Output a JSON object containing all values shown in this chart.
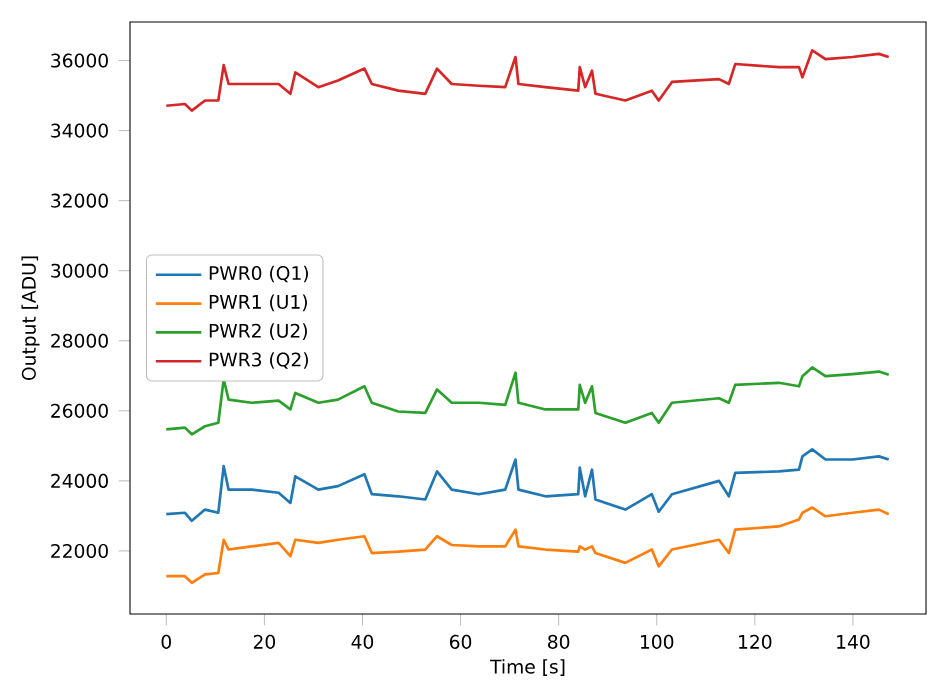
{
  "chart_data": {
    "type": "line",
    "xlabel": "Time [s]",
    "ylabel": "Output [ADU]",
    "x": [
      0,
      3.8,
      5.2,
      7.9,
      10.6,
      11.7,
      12.7,
      17.4,
      22.9,
      25.3,
      26.3,
      31,
      35,
      40.4,
      41.9,
      47.3,
      52.8,
      55.2,
      58.2,
      63.7,
      69.1,
      71.2,
      71.8,
      77.3,
      84,
      84.3,
      85.4,
      86.8,
      87.5,
      93.6,
      99,
      100.4,
      103.1,
      112.7,
      114.7,
      116,
      124.9,
      129,
      129.7,
      131.7,
      134.4,
      139.9,
      145.3,
      147.3
    ],
    "series": [
      {
        "name": "PWR0 (Q1)",
        "color": "#1f77b4",
        "values": [
          23050,
          23090,
          22860,
          23180,
          23090,
          24420,
          23750,
          23750,
          23660,
          23370,
          24130,
          23750,
          23850,
          24190,
          23620,
          23560,
          23470,
          24270,
          23750,
          23620,
          23750,
          24610,
          23750,
          23560,
          23620,
          24380,
          23560,
          24320,
          23470,
          23180,
          23620,
          23120,
          23620,
          24000,
          23560,
          24230,
          24270,
          24320,
          24700,
          24900,
          24610,
          24610,
          24700,
          24610
        ]
      },
      {
        "name": "PWR1 (U1)",
        "color": "#ff7f0e",
        "values": [
          21280,
          21280,
          21090,
          21330,
          21370,
          22320,
          22040,
          22130,
          22230,
          21850,
          22320,
          22230,
          22320,
          22420,
          21940,
          21980,
          22040,
          22420,
          22170,
          22130,
          22130,
          22610,
          22130,
          22040,
          21980,
          22130,
          22040,
          22130,
          21940,
          21660,
          22040,
          21560,
          22040,
          22320,
          21940,
          22610,
          22700,
          22900,
          23090,
          23240,
          22990,
          23090,
          23180,
          23050
        ]
      },
      {
        "name": "PWR2 (U2)",
        "color": "#2ca02c",
        "values": [
          25470,
          25520,
          25330,
          25560,
          25660,
          26900,
          26320,
          26230,
          26290,
          26040,
          26510,
          26230,
          26320,
          26700,
          26230,
          25980,
          25940,
          26610,
          26230,
          26230,
          26170,
          27090,
          26230,
          26040,
          26040,
          26740,
          26230,
          26700,
          25940,
          25660,
          25940,
          25660,
          26230,
          26360,
          26230,
          26740,
          26800,
          26700,
          26990,
          27240,
          26990,
          27050,
          27120,
          27030
        ]
      },
      {
        "name": "PWR3 (Q2)",
        "color": "#d62728",
        "values": [
          34710,
          34760,
          34570,
          34860,
          34860,
          35870,
          35330,
          35330,
          35330,
          35050,
          35660,
          35240,
          35430,
          35770,
          35330,
          35140,
          35050,
          35770,
          35330,
          35280,
          35240,
          36100,
          35330,
          35240,
          35140,
          35810,
          35240,
          35710,
          35050,
          34860,
          35140,
          34860,
          35390,
          35470,
          35330,
          35900,
          35810,
          35810,
          35520,
          36290,
          36040,
          36100,
          36190,
          36100
        ]
      }
    ],
    "xlim": [
      -7.4,
      154.9
    ],
    "ylim": [
      20200,
      37100
    ],
    "xticks": [
      0,
      20,
      40,
      60,
      80,
      100,
      120,
      140
    ],
    "yticks": [
      22000,
      24000,
      26000,
      28000,
      30000,
      32000,
      34000,
      36000
    ],
    "legend": "center left",
    "grid": false
  }
}
